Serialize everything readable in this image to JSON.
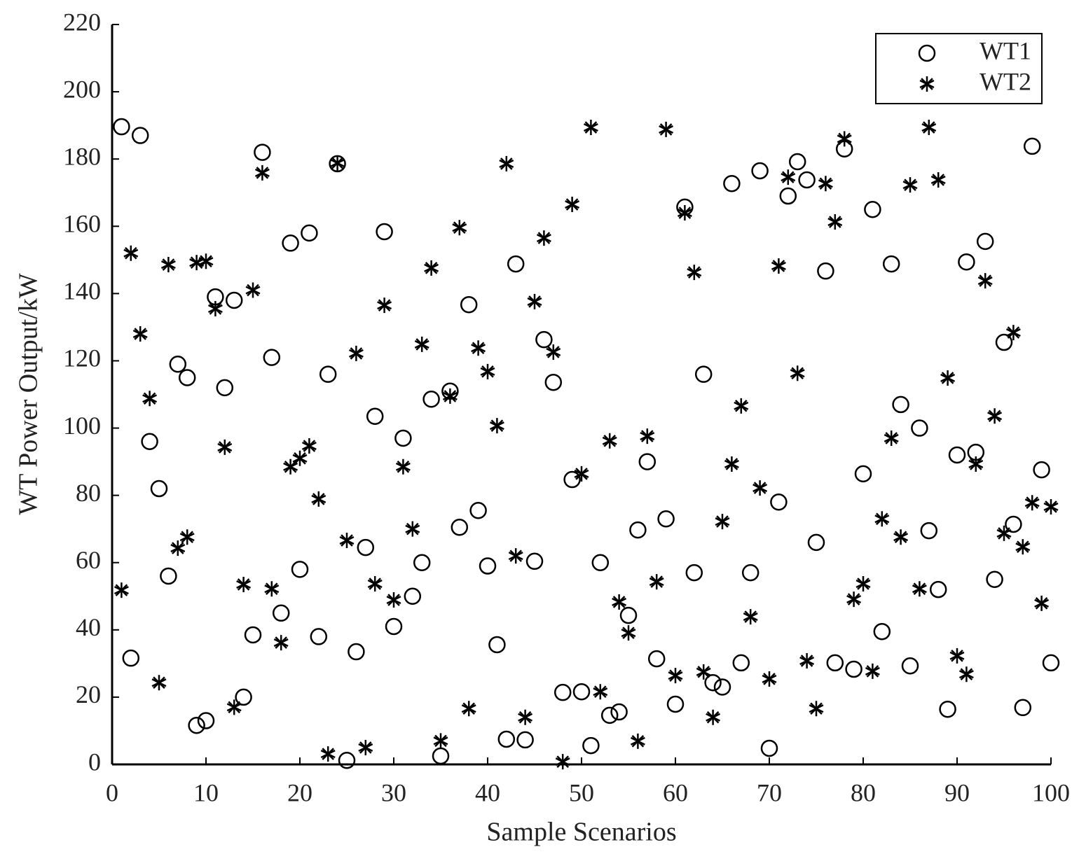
{
  "chart_data": {
    "type": "scatter",
    "xlabel": "Sample Scenarios",
    "ylabel": "WT Power Output/kW",
    "x": [
      1,
      2,
      3,
      4,
      5,
      6,
      7,
      8,
      9,
      10,
      11,
      12,
      13,
      14,
      15,
      16,
      17,
      18,
      19,
      20,
      21,
      22,
      23,
      24,
      25,
      26,
      27,
      28,
      29,
      30,
      31,
      32,
      33,
      34,
      35,
      36,
      37,
      38,
      39,
      40,
      41,
      42,
      43,
      44,
      45,
      46,
      47,
      48,
      49,
      50,
      51,
      52,
      53,
      54,
      55,
      56,
      57,
      58,
      59,
      60,
      61,
      62,
      63,
      64,
      65,
      66,
      67,
      68,
      69,
      70,
      71,
      72,
      73,
      74,
      75,
      76,
      77,
      78,
      79,
      80,
      81,
      82,
      83,
      84,
      85,
      86,
      87,
      88,
      89,
      90,
      91,
      92,
      93,
      94,
      95,
      96,
      97,
      98,
      99,
      100
    ],
    "series": [
      {
        "name": "WT1",
        "marker": "circle",
        "color": "#000000",
        "values": [
          189.6,
          31.6,
          187,
          96,
          82,
          56,
          119,
          115,
          11.6,
          13,
          139,
          112,
          138,
          20,
          38.5,
          182,
          121,
          45,
          155,
          58,
          158,
          38,
          116,
          178.6,
          1.2,
          33.5,
          64.5,
          103.5,
          158.4,
          41,
          97,
          50,
          60,
          108.6,
          2.5,
          111,
          70.5,
          136.7,
          75.5,
          59,
          35.6,
          7.5,
          148.8,
          7.3,
          60.4,
          126.3,
          113.6,
          21.4,
          84.7,
          21.6,
          5.6,
          60,
          14.6,
          15.6,
          44.3,
          69.7,
          90,
          31.4,
          73,
          17.9,
          165.7,
          57,
          116,
          24.3,
          23,
          172.7,
          30.2,
          57,
          176.5,
          4.8,
          78,
          169,
          179.2,
          173.8,
          66,
          146.7,
          30.2,
          183,
          28.3,
          86.4,
          165,
          39.5,
          148.8,
          107,
          29.3,
          100,
          69.5,
          52,
          16.4,
          92,
          149.4,
          92.8,
          155.5,
          55,
          125.5,
          71.4,
          16.9,
          183.8,
          87.6,
          30.2
        ]
      },
      {
        "name": "WT2",
        "marker": "star",
        "color": "#000000",
        "values": [
          51.8,
          152,
          128,
          108.8,
          24.3,
          148.6,
          64.3,
          67.6,
          149.2,
          149.6,
          135.5,
          94.3,
          17,
          53.5,
          141,
          175.9,
          52.2,
          36.2,
          88.5,
          91,
          94.7,
          78.9,
          3.1,
          178.8,
          66.6,
          122.2,
          5,
          53.7,
          136.5,
          48.9,
          88.5,
          70,
          124.9,
          147.6,
          7,
          109.5,
          159.6,
          16.6,
          123.8,
          116.8,
          100.7,
          178.6,
          62,
          14,
          137.6,
          156.5,
          122.6,
          0.8,
          166.5,
          86.4,
          189.4,
          21.6,
          96.2,
          48.3,
          39.1,
          6.9,
          97.6,
          54.3,
          188.8,
          26.4,
          164,
          146.3,
          27.5,
          14,
          72.2,
          89.3,
          106.6,
          43.9,
          82.2,
          25.4,
          148.2,
          174.6,
          116.3,
          30.8,
          16.6,
          172.7,
          161.3,
          186,
          49.1,
          53.7,
          27.7,
          73,
          97,
          67.6,
          172.3,
          52.2,
          189.4,
          173.8,
          114.9,
          32.3,
          26.8,
          89.3,
          143.8,
          103.6,
          68.7,
          128.4,
          64.7,
          77.8,
          47.9,
          76.6
        ]
      }
    ],
    "xlim": [
      0,
      100
    ],
    "xticks": [
      0,
      10,
      20,
      30,
      40,
      50,
      60,
      70,
      80,
      90,
      100
    ],
    "ylim": [
      0,
      220
    ],
    "yticks": [
      0,
      20,
      40,
      60,
      80,
      100,
      120,
      140,
      160,
      180,
      200,
      220
    ],
    "grid": false,
    "legend": "upper right"
  }
}
